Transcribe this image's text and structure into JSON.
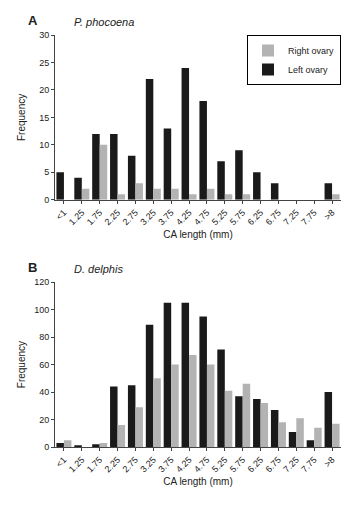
{
  "chart_data": [
    {
      "type": "bar",
      "title": "A",
      "subtitle": "P. phocoena",
      "categories": [
        "<1",
        "1.25",
        "1.75",
        "2.25",
        "2.75",
        "3.25",
        "3.75",
        "4.25",
        "4.75",
        "5.25",
        "5.75",
        "6.25",
        "6.75",
        "7.25",
        "7.75",
        ">8"
      ],
      "series": [
        {
          "name": "Left ovary",
          "color": "#1a1a1a",
          "values": [
            5,
            4,
            12,
            12,
            8,
            22,
            13,
            24,
            18,
            7,
            9,
            5,
            3,
            0,
            0,
            3
          ]
        },
        {
          "name": "Right ovary",
          "color": "#b3b3b3",
          "values": [
            0,
            2,
            10,
            1,
            3,
            2,
            2,
            1,
            2,
            1,
            1,
            0,
            0,
            0,
            0,
            1
          ]
        }
      ],
      "xlabel": "CA length (mm)",
      "ylabel": "Frequency",
      "ylim": [
        0,
        30
      ],
      "yticks": [
        0,
        5,
        10,
        15,
        20,
        25,
        30
      ],
      "grid": false,
      "legend": "upper right"
    },
    {
      "type": "bar",
      "title": "B",
      "subtitle": "D. delphis",
      "categories": [
        "<1",
        "1.25",
        "1.75",
        "2.25",
        "2.75",
        "3.25",
        "3.75",
        "4.25",
        "4.75",
        "5.25",
        "5.75",
        "6.25",
        "6.75",
        "7.25",
        "7.75",
        ">8"
      ],
      "series": [
        {
          "color": "#1a1a1a",
          "values": [
            3,
            1,
            2,
            44,
            45,
            89,
            105,
            105,
            95,
            71,
            37,
            35,
            27,
            11,
            5,
            40
          ]
        },
        {
          "color": "#b3b3b3",
          "values": [
            5,
            0,
            3,
            16,
            29,
            50,
            60,
            67,
            60,
            41,
            46,
            32,
            18,
            21,
            14,
            17
          ]
        }
      ],
      "xlabel": "CA length (mm)",
      "ylabel": "Frequency",
      "ylim": [
        0,
        120
      ],
      "yticks": [
        0,
        20,
        40,
        60,
        80,
        100,
        120
      ],
      "grid": false
    }
  ]
}
